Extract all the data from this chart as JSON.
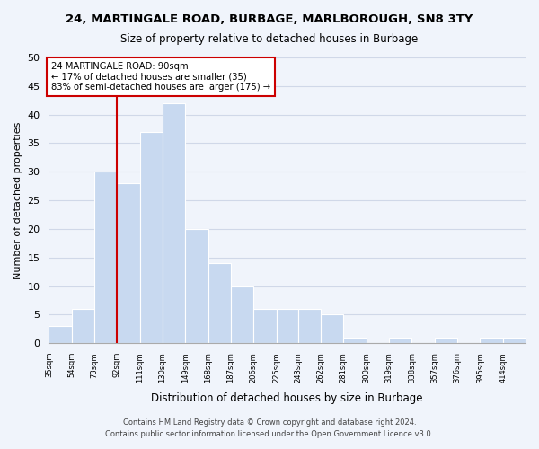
{
  "title": "24, MARTINGALE ROAD, BURBAGE, MARLBOROUGH, SN8 3TY",
  "subtitle": "Size of property relative to detached houses in Burbage",
  "xlabel": "Distribution of detached houses by size in Burbage",
  "ylabel": "Number of detached properties",
  "bar_edges": [
    35,
    54,
    73,
    92,
    111,
    130,
    149,
    168,
    187,
    206,
    225,
    243,
    262,
    281,
    300,
    319,
    338,
    357,
    376,
    395,
    414,
    433
  ],
  "bar_heights": [
    3,
    6,
    30,
    28,
    37,
    42,
    20,
    14,
    10,
    6,
    6,
    6,
    5,
    1,
    0,
    1,
    0,
    1,
    0,
    1,
    1
  ],
  "tick_labels": [
    "35sqm",
    "54sqm",
    "73sqm",
    "92sqm",
    "111sqm",
    "130sqm",
    "149sqm",
    "168sqm",
    "187sqm",
    "206sqm",
    "225sqm",
    "243sqm",
    "262sqm",
    "281sqm",
    "300sqm",
    "319sqm",
    "338sqm",
    "357sqm",
    "376sqm",
    "395sqm",
    "414sqm"
  ],
  "tick_positions": [
    35,
    54,
    73,
    92,
    111,
    130,
    149,
    168,
    187,
    206,
    225,
    243,
    262,
    281,
    300,
    319,
    338,
    357,
    376,
    395,
    414
  ],
  "bar_color": "#c8d9f0",
  "bar_edge_color": "#ffffff",
  "property_line_x": 92,
  "property_line_color": "#cc0000",
  "annotation_lines": [
    "24 MARTINGALE ROAD: 90sqm",
    "← 17% of detached houses are smaller (35)",
    "83% of semi-detached houses are larger (175) →"
  ],
  "annotation_box_edgecolor": "#cc0000",
  "annotation_box_facecolor": "#ffffff",
  "ylim": [
    0,
    50
  ],
  "yticks": [
    0,
    5,
    10,
    15,
    20,
    25,
    30,
    35,
    40,
    45,
    50
  ],
  "grid_color": "#d0d8e8",
  "background_color": "#f0f4fb",
  "footer_line1": "Contains HM Land Registry data © Crown copyright and database right 2024.",
  "footer_line2": "Contains public sector information licensed under the Open Government Licence v3.0."
}
